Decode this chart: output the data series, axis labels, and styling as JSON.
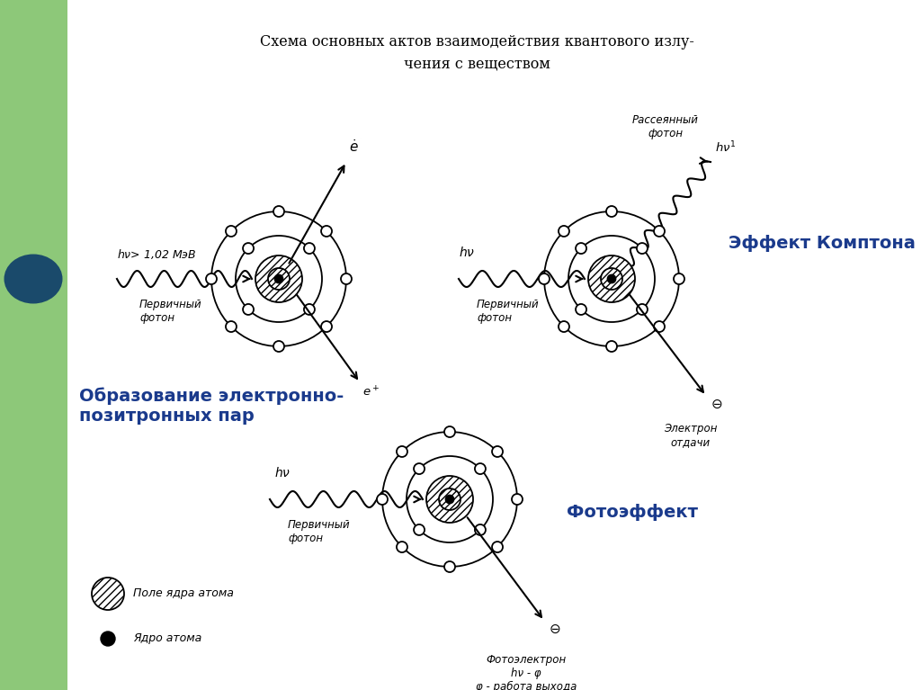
{
  "title_line1": "Схема основных актов взаимодействия квантового излу-",
  "title_line2": "чения с веществом",
  "bg_color": "#ffffff",
  "left_bar_color": "#1a4a6b",
  "left_bar2_color": "#8dc879",
  "label_pair_creation": "Образование электронно-\nпозитронных пар",
  "label_compton": "Эффект Комптона",
  "label_photo": "Фотоэффект",
  "label_color": "#1a3a8c",
  "atom_field_label": "Поле ядра атома",
  "nucleus_label": "Ядро атома"
}
